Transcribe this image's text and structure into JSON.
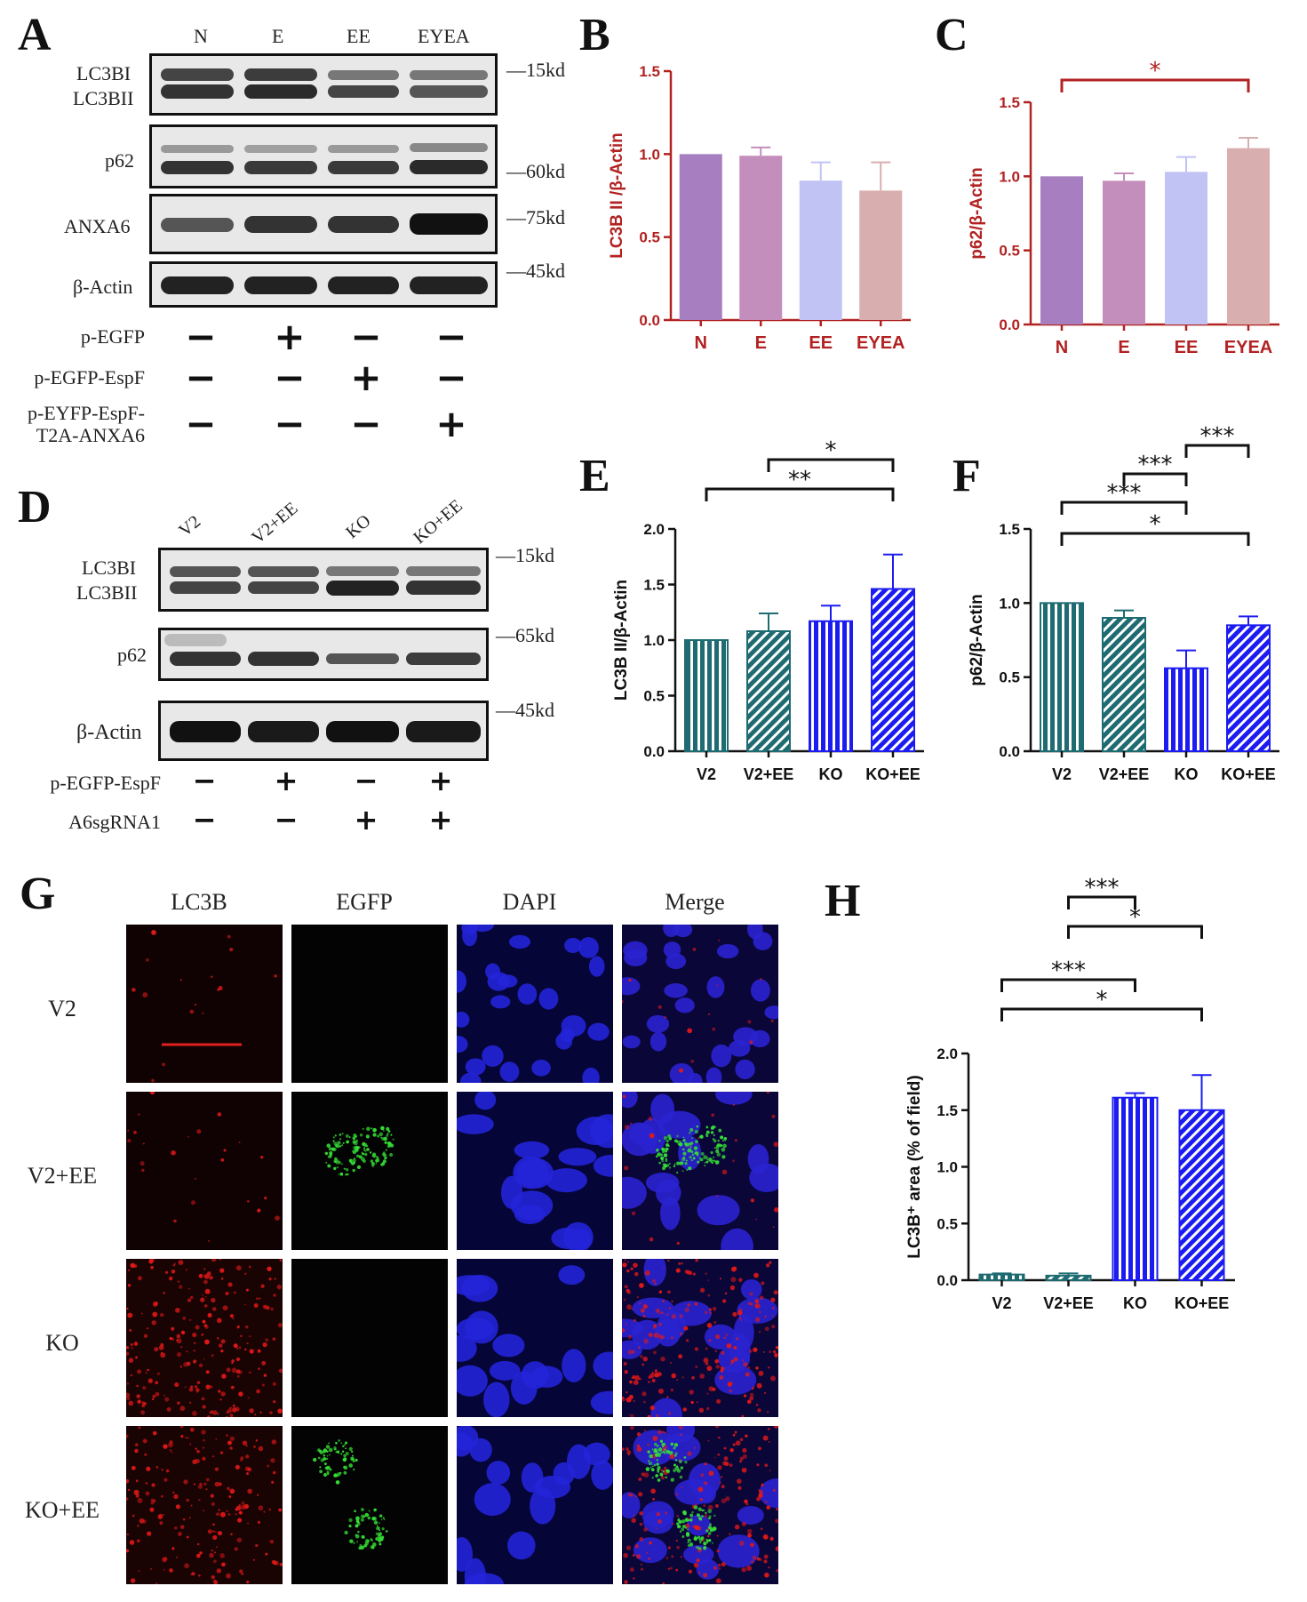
{
  "panels": {
    "A": "A",
    "B": "B",
    "C": "C",
    "D": "D",
    "E": "E",
    "F": "F",
    "G": "G",
    "H": "H"
  },
  "blotA": {
    "lanes": [
      "N",
      "E",
      "EE",
      "EYEA"
    ],
    "rows": [
      {
        "label1": "LC3BI",
        "label2": "LC3BII",
        "kd": "15kd"
      },
      {
        "label1": "p62",
        "label2": "",
        "kd": "60kd"
      },
      {
        "label1": "ANXA6",
        "label2": "",
        "kd": "75kd"
      },
      {
        "label1": "β-Actin",
        "label2": "",
        "kd": "45kd"
      }
    ],
    "treatments": [
      {
        "label": "p-EGFP",
        "marks": [
          "−",
          "+",
          "−",
          "−"
        ]
      },
      {
        "label": "p-EGFP-EspF",
        "marks": [
          "−",
          "−",
          "+",
          "−"
        ]
      },
      {
        "label": "p-EYFP-EspF-\nT2A-ANXA6",
        "marks": [
          "−",
          "−",
          "−",
          "+"
        ]
      }
    ]
  },
  "blotD": {
    "lanes": [
      "V2",
      "V2+EE",
      "KO",
      "KO+EE"
    ],
    "rows": [
      {
        "label1": "LC3BI",
        "label2": "LC3BII",
        "kd": "15kd"
      },
      {
        "label1": "p62",
        "label2": "",
        "kd": "65kd"
      },
      {
        "label1": "β-Actin",
        "label2": "",
        "kd": "45kd"
      }
    ],
    "treatments": [
      {
        "label": "p-EGFP-EspF",
        "marks": [
          "−",
          "+",
          "−",
          "+"
        ]
      },
      {
        "label": "A6sgRNA1",
        "marks": [
          "−",
          "−",
          "+",
          "+"
        ]
      }
    ]
  },
  "microscopy": {
    "columns": [
      "LC3B",
      "EGFP",
      "DAPI",
      "Merge"
    ],
    "rows": [
      "V2",
      "V2+EE",
      "KO",
      "KO+EE"
    ]
  },
  "chart_data": [
    {
      "id": "B",
      "type": "bar",
      "categories": [
        "N",
        "E",
        "EE",
        "EYEA"
      ],
      "values": [
        1.0,
        0.99,
        0.84,
        0.78
      ],
      "errors": [
        0,
        0.05,
        0.11,
        0.17
      ],
      "ylabel": "LC3B II /β-Actin",
      "ylim": [
        0,
        1.5
      ],
      "yticks": [
        "0.0",
        "0.5",
        "1.0",
        "1.5"
      ],
      "colors": [
        "#a77fc0",
        "#c48ebc",
        "#c0c3f4",
        "#d9aeae"
      ],
      "axis_color": "#b22222",
      "style": "solid",
      "sig": []
    },
    {
      "id": "C",
      "type": "bar",
      "categories": [
        "N",
        "E",
        "EE",
        "EYEA"
      ],
      "values": [
        1.0,
        0.97,
        1.03,
        1.19
      ],
      "errors": [
        0,
        0.05,
        0.1,
        0.07
      ],
      "ylabel": "p62/β-Actin",
      "ylim": [
        0,
        1.5
      ],
      "yticks": [
        "0.0",
        "0.5",
        "1.0",
        "1.5"
      ],
      "colors": [
        "#a77fc0",
        "#c48ebc",
        "#c0c3f4",
        "#d9aeae"
      ],
      "axis_color": "#b22222",
      "style": "solid",
      "sig": [
        {
          "from": 0,
          "to": 3,
          "label": "*",
          "level": 0
        }
      ]
    },
    {
      "id": "E",
      "type": "bar",
      "categories": [
        "V2",
        "V2+EE",
        "KO",
        "KO+EE"
      ],
      "values": [
        1.0,
        1.08,
        1.17,
        1.46
      ],
      "errors": [
        0,
        0.16,
        0.14,
        0.31
      ],
      "ylabel": "LC3B II/β-Actin",
      "ylim": [
        0,
        2.0
      ],
      "yticks": [
        "0.0",
        "0.5",
        "1.0",
        "1.5",
        "2.0"
      ],
      "colors": [
        "#1f6b72",
        "#1f6b72",
        "#1c1cf2",
        "#1c1cf2"
      ],
      "axis_color": "#111111",
      "style": "pattern",
      "patterns": [
        "vert",
        "diag",
        "vert",
        "diag"
      ],
      "sig": [
        {
          "from": 0,
          "to": 3,
          "label": "**",
          "level": 1
        },
        {
          "from": 1,
          "to": 3,
          "label": "*",
          "level": 0
        }
      ]
    },
    {
      "id": "F",
      "type": "bar",
      "categories": [
        "V2",
        "V2+EE",
        "KO",
        "KO+EE"
      ],
      "values": [
        1.0,
        0.9,
        0.56,
        0.85
      ],
      "errors": [
        0,
        0.05,
        0.12,
        0.06
      ],
      "ylabel": "p62/β-Actin",
      "ylim": [
        0,
        1.5
      ],
      "yticks": [
        "0.0",
        "0.5",
        "1.0",
        "1.5"
      ],
      "colors": [
        "#1f6b72",
        "#1f6b72",
        "#1c1cf2",
        "#1c1cf2"
      ],
      "axis_color": "#111111",
      "style": "pattern",
      "patterns": [
        "vert",
        "diag",
        "vert",
        "diag"
      ],
      "sig": [
        {
          "from": 0,
          "to": 3,
          "label": "*",
          "level": 3
        },
        {
          "from": 0,
          "to": 2,
          "label": "***",
          "level": 2
        },
        {
          "from": 1,
          "to": 2,
          "label": "***",
          "level": 1
        },
        {
          "from": 2,
          "to": 3,
          "label": "***",
          "level": 0
        }
      ]
    },
    {
      "id": "H",
      "type": "bar",
      "categories": [
        "V2",
        "V2+EE",
        "KO",
        "KO+EE"
      ],
      "values": [
        0.05,
        0.04,
        1.61,
        1.5
      ],
      "errors": [
        0.01,
        0.02,
        0.04,
        0.31
      ],
      "ylabel": "LC3B⁺ area (% of field)",
      "ylim": [
        0,
        2.0
      ],
      "yticks": [
        "0.0",
        "0.5",
        "1.0",
        "1.5",
        "2.0"
      ],
      "colors": [
        "#1f6b72",
        "#1f6b72",
        "#1c1cf2",
        "#1c1cf2"
      ],
      "axis_color": "#111111",
      "style": "pattern",
      "patterns": [
        "vert",
        "diag",
        "vert",
        "diag"
      ],
      "sig": [
        {
          "from": 0,
          "to": 3,
          "label": "*",
          "level": 3
        },
        {
          "from": 0,
          "to": 2,
          "label": "***",
          "level": 2
        },
        {
          "from": 1,
          "to": 3,
          "label": "*",
          "level": 1
        },
        {
          "from": 1,
          "to": 2,
          "label": "***",
          "level": 0
        }
      ]
    }
  ]
}
